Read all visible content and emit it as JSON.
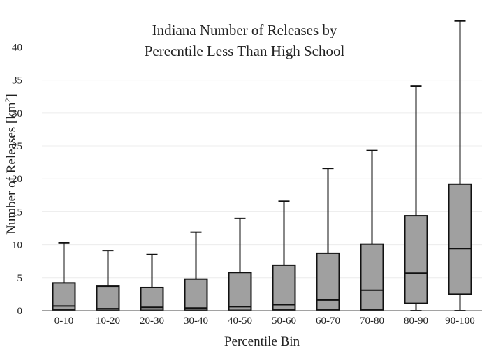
{
  "chart_data": {
    "type": "box",
    "title_lines": [
      "Indiana Number of Releases by",
      "Perecntile Less Than High School"
    ],
    "xlabel": "Percentile Bin",
    "ylabel_text": "Number of Releases  [km",
    "ylabel_sup": "2",
    "ylabel_close": "]",
    "ylim": [
      0,
      44.5
    ],
    "yticks": [
      0,
      5,
      10,
      15,
      20,
      25,
      30,
      35,
      40
    ],
    "grid": true,
    "box_color": "#a0a0a0",
    "categories": [
      "0-10",
      "10-20",
      "20-30",
      "30-40",
      "40-50",
      "50-60",
      "60-70",
      "70-80",
      "80-90",
      "90-100"
    ],
    "boxes": [
      {
        "min": 0,
        "q1": 0.1,
        "median": 0.7,
        "q3": 4.2,
        "max": 10.3
      },
      {
        "min": 0,
        "q1": 0.05,
        "median": 0.3,
        "q3": 3.7,
        "max": 9.1
      },
      {
        "min": 0,
        "q1": 0.05,
        "median": 0.5,
        "q3": 3.5,
        "max": 8.5
      },
      {
        "min": 0,
        "q1": 0.05,
        "median": 0.4,
        "q3": 4.8,
        "max": 11.9
      },
      {
        "min": 0,
        "q1": 0.05,
        "median": 0.6,
        "q3": 5.8,
        "max": 14.0
      },
      {
        "min": 0,
        "q1": 0.1,
        "median": 0.9,
        "q3": 6.9,
        "max": 16.6
      },
      {
        "min": 0,
        "q1": 0.1,
        "median": 1.6,
        "q3": 8.7,
        "max": 21.6
      },
      {
        "min": 0,
        "q1": 0.1,
        "median": 3.1,
        "q3": 10.1,
        "max": 24.3
      },
      {
        "min": 0,
        "q1": 1.1,
        "median": 5.7,
        "q3": 14.4,
        "max": 34.1
      },
      {
        "min": 0,
        "q1": 2.5,
        "median": 9.4,
        "q3": 19.2,
        "max": 44.0
      }
    ]
  }
}
